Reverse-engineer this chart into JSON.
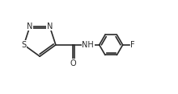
{
  "bg_color": "#ffffff",
  "line_color": "#2a2a2a",
  "line_width": 1.2,
  "font_size": 7.0,
  "fig_width": 2.2,
  "fig_height": 1.17,
  "dpi": 100,
  "xlim": [
    0.0,
    8.5
  ],
  "ylim": [
    0.5,
    4.2
  ]
}
